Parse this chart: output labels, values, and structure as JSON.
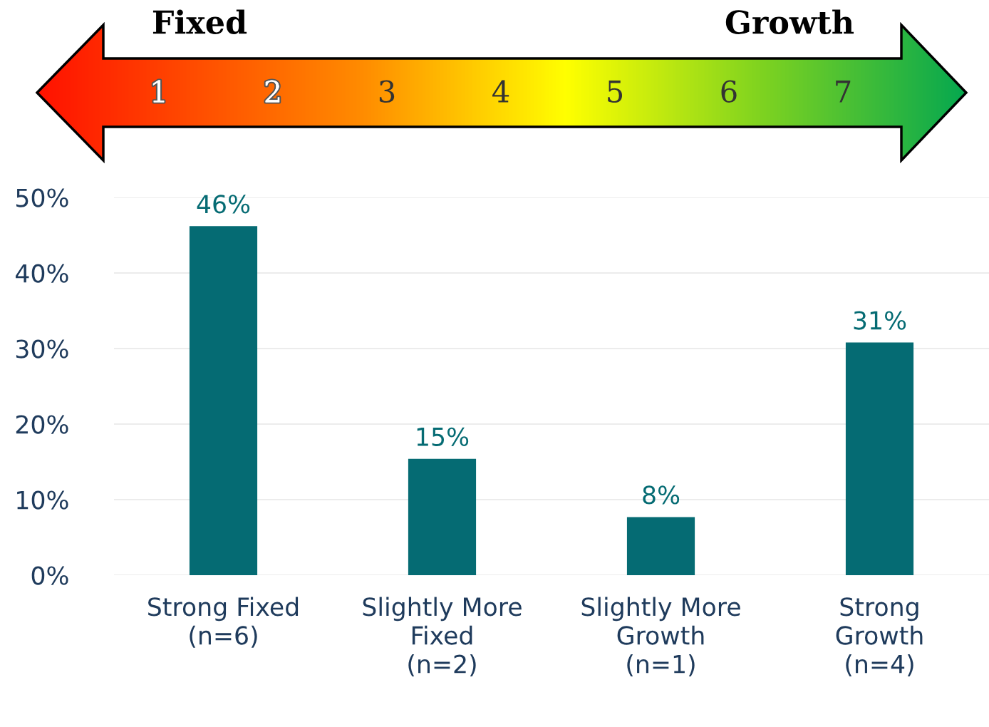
{
  "chart_data": {
    "type": "bar",
    "categories": [
      "Strong Fixed\n(n=6)",
      "Slightly More\nFixed\n(n=2)",
      "Slightly More\nGrowth\n(n=1)",
      "Strong\nGrowth\n(n=4)"
    ],
    "values": [
      46.2,
      15.4,
      7.7,
      30.8
    ],
    "value_labels": [
      "46%",
      "15%",
      "8%",
      "31%"
    ],
    "color": "#056b73",
    "ylim": [
      0,
      50
    ],
    "yticks": [
      {
        "value": 0,
        "label": "0%"
      },
      {
        "value": 10,
        "label": "10%"
      },
      {
        "value": 20,
        "label": "20%"
      },
      {
        "value": 30,
        "label": "30%"
      },
      {
        "value": 40,
        "label": "40%"
      },
      {
        "value": 50,
        "label": "50%"
      }
    ],
    "grid": "y",
    "annotations": [
      "Fixed",
      "Growth",
      "1",
      "2",
      "3",
      "4",
      "5",
      "6",
      "7"
    ]
  }
}
